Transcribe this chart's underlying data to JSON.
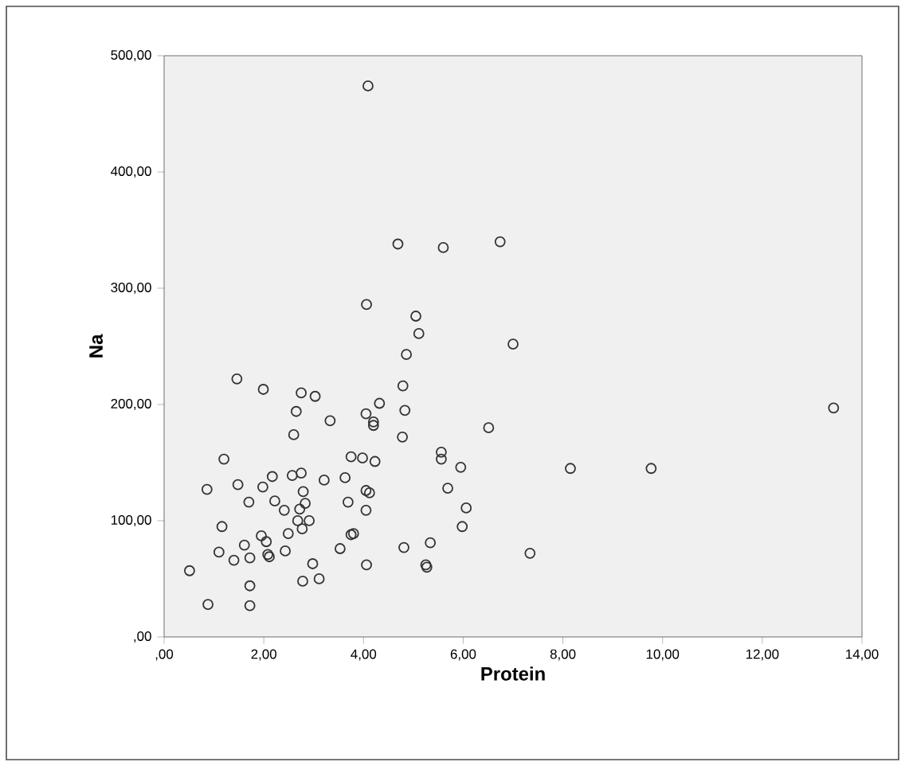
{
  "chart_data": {
    "type": "scatter",
    "xlabel": "Protein",
    "ylabel": "Na",
    "xlim": [
      0,
      14
    ],
    "ylim": [
      0,
      500
    ],
    "xticks": [
      {
        "value": 0,
        "label": ",00"
      },
      {
        "value": 2,
        "label": "2,00"
      },
      {
        "value": 4,
        "label": "4,00"
      },
      {
        "value": 6,
        "label": "6,00"
      },
      {
        "value": 8,
        "label": "8,00"
      },
      {
        "value": 10,
        "label": "10,00"
      },
      {
        "value": 12,
        "label": "12,00"
      },
      {
        "value": 14,
        "label": "14,00"
      }
    ],
    "yticks": [
      {
        "value": 0,
        "label": ",00"
      },
      {
        "value": 100,
        "label": "100,00"
      },
      {
        "value": 200,
        "label": "200,00"
      },
      {
        "value": 300,
        "label": "300,00"
      },
      {
        "value": 400,
        "label": "400,00"
      },
      {
        "value": 500,
        "label": "500,00"
      }
    ],
    "marker": "circle",
    "grid": false,
    "series": [
      {
        "color": "#333333",
        "x": [
          0.51,
          0.88,
          0.86,
          1.1,
          1.16,
          1.2,
          1.4,
          1.46,
          1.48,
          1.61,
          1.72,
          1.7,
          1.72,
          1.72,
          1.95,
          1.99,
          1.98,
          2.05,
          2.08,
          2.11,
          2.17,
          2.22,
          2.41,
          2.43,
          2.49,
          2.57,
          2.6,
          2.65,
          2.72,
          2.68,
          2.75,
          2.75,
          2.78,
          2.77,
          2.79,
          2.83,
          2.91,
          2.98,
          3.03,
          3.11,
          3.21,
          3.33,
          3.53,
          3.63,
          3.69,
          3.75,
          3.75,
          3.8,
          3.98,
          4.05,
          4.05,
          4.05,
          4.06,
          4.12,
          4.2,
          4.2,
          4.23,
          4.32,
          4.78,
          4.79,
          4.81,
          4.83,
          4.86,
          5.25,
          5.27,
          5.34,
          5.56,
          5.56,
          5.69,
          5.95,
          5.98,
          6.06,
          6.51,
          4.09,
          4.69,
          5.6,
          4.06,
          5.05,
          5.11,
          6.74,
          7.0,
          8.15,
          9.77,
          13.43,
          7.34
        ],
        "values": [
          57,
          28,
          127,
          73,
          95,
          153,
          66,
          222,
          131,
          79,
          68,
          116,
          44,
          27,
          87,
          213,
          129,
          82,
          71,
          69,
          138,
          117,
          109,
          74,
          89,
          139,
          174,
          194,
          110,
          100,
          141,
          210,
          48,
          93,
          125,
          115,
          100,
          63,
          207,
          50,
          135,
          186,
          76,
          137,
          116,
          155,
          88,
          89,
          154,
          192,
          126,
          109,
          62,
          124,
          185,
          182,
          151,
          201,
          172,
          216,
          77,
          195,
          243,
          62,
          60,
          81,
          159,
          153,
          128,
          146,
          95,
          111,
          180,
          474,
          338,
          335,
          286,
          276,
          261,
          340,
          252,
          145,
          145,
          197,
          72
        ]
      }
    ]
  }
}
